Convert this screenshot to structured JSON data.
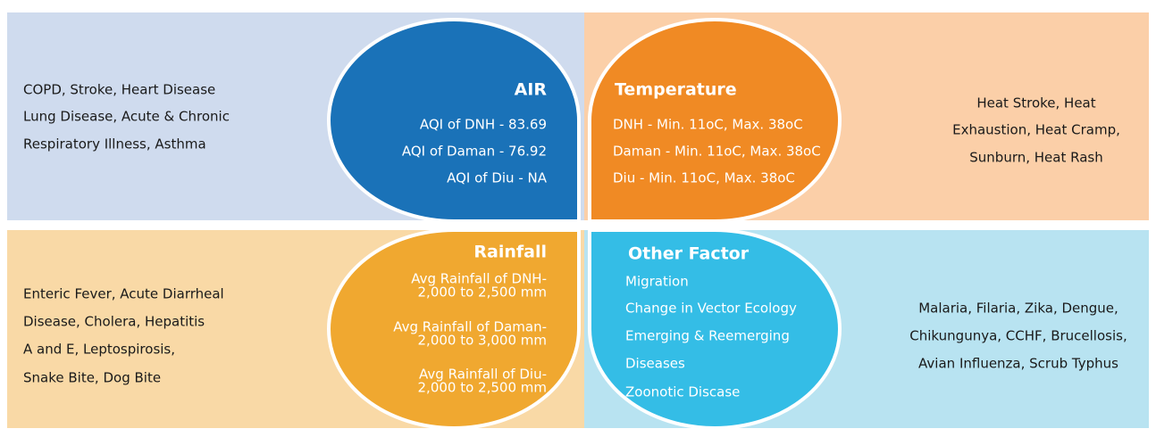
{
  "quadrants": [
    {
      "title": "AIR",
      "lines": [
        "AQI of DNH - 83.69",
        "AQI of Daman - 76.92",
        "AQI of Diu - NA"
      ],
      "effects": [
        "COPD, Stroke, Heart Disease",
        "Lung Disease, Acute & Chronic",
        "Respiratory Illness, Asthma"
      ]
    },
    {
      "title": "Temperature",
      "lines": [
        "DNH - Min. 11oC, Max. 38oC",
        "Daman - Min. 11oC, Max. 38oC",
        "Diu - Min. 11oC, Max. 38oC"
      ],
      "effects": [
        "Heat Stroke, Heat",
        "Exhaustion, Heat Cramp,",
        "Sunburn, Heat Rash"
      ]
    },
    {
      "title": "Rainfall",
      "lines": [
        "Avg Rainfall of DNH-",
        "2,000 to 2,500 mm",
        "Avg Rainfall of Daman-",
        "2,000 to 3,000 mm",
        "Avg Rainfall of Diu-",
        "2,000 to 2,500 mm"
      ],
      "effects": [
        "Enteric Fever, Acute Diarrheal",
        "Disease, Cholera, Hepatitis",
        "A and E, Leptospirosis,",
        "Snake Bite, Dog Bite"
      ]
    },
    {
      "title": "Other Factor",
      "lines": [
        "Migration",
        "Change in Vector Ecology",
        "Emerging & Reemerging",
        "Diseases",
        "Zoonotic Discase"
      ],
      "effects": [
        "Malaria, Filaria, Zika, Dengue,",
        "Chikungunya, CCHF, Brucellosis,",
        "Avian Influenza, Scrub Typhus"
      ]
    }
  ]
}
